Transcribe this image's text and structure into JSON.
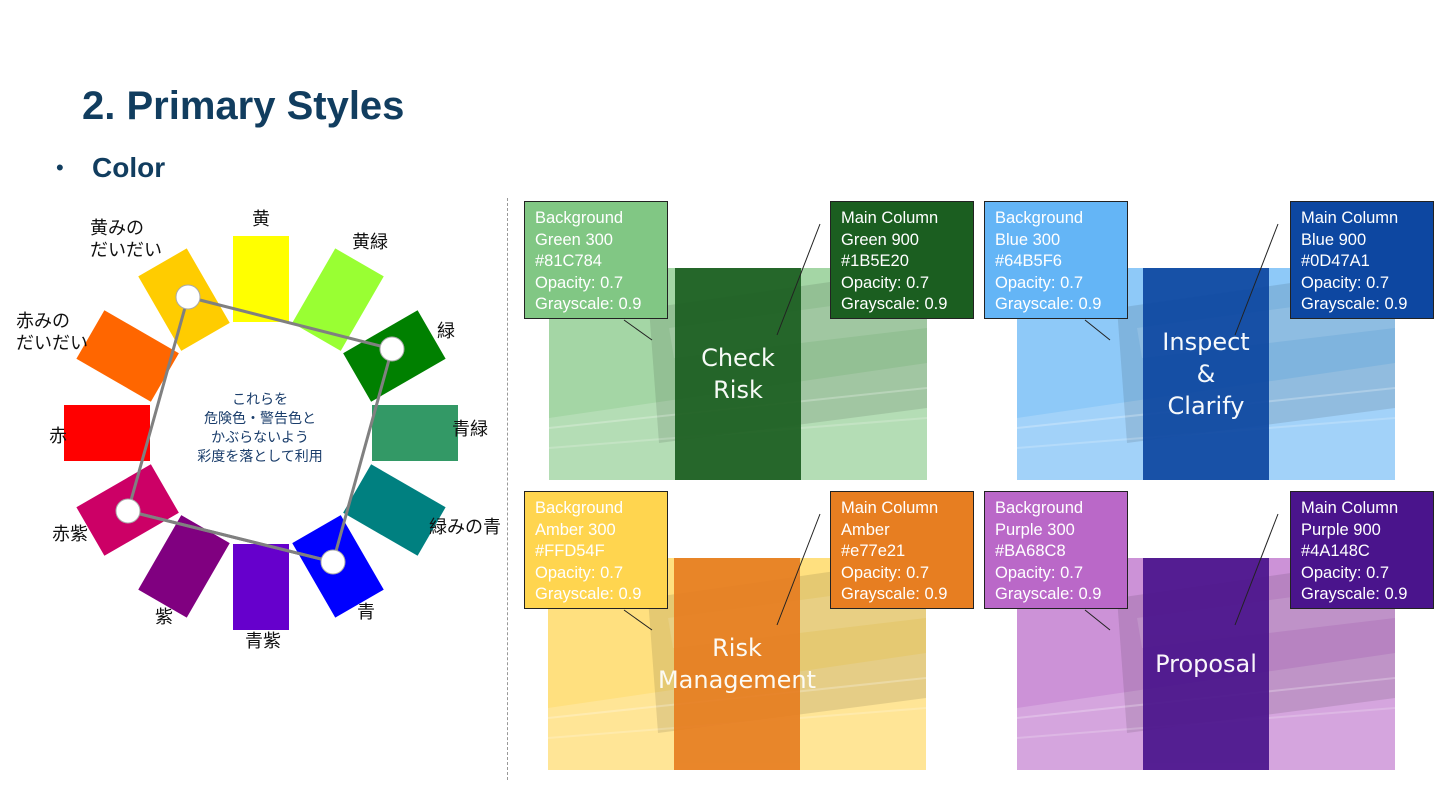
{
  "title": "2. Primary Styles",
  "bullet": {
    "marker": "•",
    "text": "Color"
  },
  "wheel": {
    "labels": {
      "yellow": "黄",
      "yellow_green": "黄緑",
      "green": "緑",
      "blue_green": "青緑",
      "green_blue": "緑みの青",
      "blue": "青",
      "blue_purple": "青紫",
      "purple": "紫",
      "red_purple": "赤紫",
      "red": "赤",
      "red_orange_line1": "赤みの",
      "red_orange_line2": "だいだい",
      "yellow_orange_line1": "黄みの",
      "yellow_orange_line2": "だいだい"
    },
    "center_lines": [
      "これらを",
      "危険色・警告色と",
      "かぶらないよう",
      "彩度を落として利用"
    ],
    "swatch_colors": {
      "yellow": "#ffff00",
      "yellow_green": "#99ff33",
      "green": "#008000",
      "blue_green": "#339966",
      "green_blue": "#008080",
      "blue": "#0000ff",
      "blue_purple": "#6600cc",
      "purple": "#800080",
      "red_purple": "#cc0066",
      "red": "#ff0000",
      "red_orange": "#ff6600",
      "yellow_orange": "#ffcc00"
    }
  },
  "cards": [
    {
      "column_label_lines": [
        "Check Risk"
      ],
      "bg_color": "#81C784",
      "col_color": "#1B5E20",
      "bg_box": [
        "Background",
        "Green 300",
        "#81C784",
        "Opacity: 0.7",
        "Grayscale: 0.9"
      ],
      "col_box": [
        "Main Column",
        "Green 900",
        "#1B5E20",
        "Opacity: 0.7",
        "Grayscale: 0.9"
      ]
    },
    {
      "column_label_lines": [
        "Inspect",
        "&",
        "Clarify"
      ],
      "bg_color": "#64B5F6",
      "col_color": "#0D47A1",
      "bg_box": [
        "Background",
        "Blue 300",
        "#64B5F6",
        "Opacity: 0.7",
        "Grayscale: 0.9"
      ],
      "col_box": [
        "Main Column",
        "Blue 900",
        "#0D47A1",
        "Opacity: 0.7",
        "Grayscale: 0.9"
      ]
    },
    {
      "column_label_lines": [
        "Risk",
        "Management"
      ],
      "bg_color": "#FFD54F",
      "col_color": "#e77e21",
      "bg_box": [
        "Background",
        "Amber 300",
        "#FFD54F",
        "Opacity: 0.7",
        "Grayscale: 0.9"
      ],
      "col_box": [
        "Main Column",
        "Amber",
        "#e77e21",
        "Opacity: 0.7",
        "Grayscale: 0.9"
      ]
    },
    {
      "column_label_lines": [
        "Proposal"
      ],
      "bg_color": "#BA68C8",
      "col_color": "#4A148C",
      "bg_box": [
        "Background",
        "Purple 300",
        "#BA68C8",
        "Opacity: 0.7",
        "Grayscale: 0.9"
      ],
      "col_box": [
        "Main Column",
        "Purple 900",
        "#4A148C",
        "Opacity: 0.7",
        "Grayscale: 0.9"
      ]
    }
  ]
}
